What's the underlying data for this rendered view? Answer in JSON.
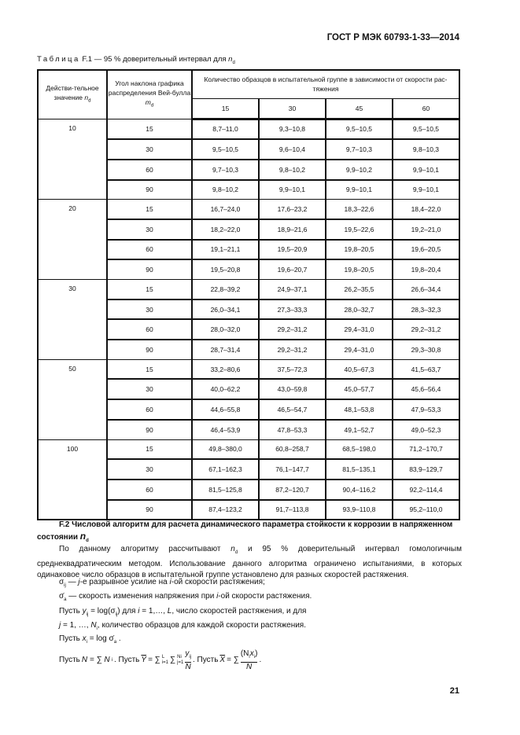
{
  "header": {
    "doc_id": "ГОСТ Р МЭК 60793-1-33—2014"
  },
  "caption": {
    "label": "Таблица",
    "rest": " F.1 — 95 % доверительный интервал для ",
    "var": "n",
    "sub": "d"
  },
  "table": {
    "col1": {
      "text": "Действи-тельное значение ",
      "var": "n",
      "sub": "d"
    },
    "col2": {
      "text": "Угол наклона графика распределения Вей-булла ",
      "var": "m",
      "sub": "d"
    },
    "group": "Количество образцов в испытательной группе в зависимости от скорости рас-тяжения",
    "sample_sizes": [
      "15",
      "30",
      "45",
      "60"
    ],
    "groups": [
      {
        "nd": "10",
        "rows": [
          {
            "m": "15",
            "v": [
              "8,7–11,0",
              "9,3–10,8",
              "9,5–10,5",
              "9,5–10,5"
            ]
          },
          {
            "m": "30",
            "v": [
              "9,5–10,5",
              "9,6–10,4",
              "9,7–10,3",
              "9,8–10,3"
            ]
          },
          {
            "m": "60",
            "v": [
              "9,7–10,3",
              "9,8–10,2",
              "9,9–10,2",
              "9,9–10,1"
            ]
          },
          {
            "m": "90",
            "v": [
              "9,8–10,2",
              "9,9–10,1",
              "9,9–10,1",
              "9,9–10,1"
            ]
          }
        ]
      },
      {
        "nd": "20",
        "rows": [
          {
            "m": "15",
            "v": [
              "16,7–24,0",
              "17,6–23,2",
              "18,3–22,6",
              "18,4–22,0"
            ]
          },
          {
            "m": "30",
            "v": [
              "18,2–22,0",
              "18,9–21,6",
              "19,5–22,6",
              "19,2–21,0"
            ]
          },
          {
            "m": "60",
            "v": [
              "19,1–21,1",
              "19,5–20,9",
              "19,8–20,5",
              "19,6–20,5"
            ]
          },
          {
            "m": "90",
            "v": [
              "19,5–20,8",
              "19,6–20,7",
              "19,8–20,5",
              "19,8–20,4"
            ]
          }
        ]
      },
      {
        "nd": "30",
        "rows": [
          {
            "m": "15",
            "v": [
              "22,8–39,2",
              "24,9–37,1",
              "26,2–35,5",
              "26,6–34,4"
            ]
          },
          {
            "m": "30",
            "v": [
              "26,0–34,1",
              "27,3–33,3",
              "28,0–32,7",
              "28,3–32,3"
            ]
          },
          {
            "m": "60",
            "v": [
              "28,0–32,0",
              "29,2–31,2",
              "29,4–31,0",
              "29,2–31,2"
            ]
          },
          {
            "m": "90",
            "v": [
              "28,7–31,4",
              "29,2–31,2",
              "29,4–31,0",
              "29,3–30,8"
            ]
          }
        ]
      },
      {
        "nd": "50",
        "rows": [
          {
            "m": "15",
            "v": [
              "33,2–80,6",
              "37,5–72,3",
              "40,5–67,3",
              "41,5–63,7"
            ]
          },
          {
            "m": "30",
            "v": [
              "40,0–62,2",
              "43,0–59,8",
              "45,0–57,7",
              "45,6–56,4"
            ]
          },
          {
            "m": "60",
            "v": [
              "44,6–55,8",
              "46,5–54,7",
              "48,1–53,8",
              "47,9–53,3"
            ]
          },
          {
            "m": "90",
            "v": [
              "46,4–53,9",
              "47,8–53,3",
              "49,1–52,7",
              "49,0–52,3"
            ]
          }
        ]
      },
      {
        "nd": "100",
        "rows": [
          {
            "m": "15",
            "v": [
              "49,8–380,0",
              "60,8–258,7",
              "68,5–198,0",
              "71,2–170,7"
            ]
          },
          {
            "m": "30",
            "v": [
              "67,1–162,3",
              "76,1–147,7",
              "81,5–135,1",
              "83,9–129,7"
            ]
          },
          {
            "m": "60",
            "v": [
              "81,5–125,8",
              "87,2–120,7",
              "90,4–116,2",
              "92,2–114,4"
            ]
          },
          {
            "m": "90",
            "v": [
              "87,4–123,2",
              "91,7–113,8",
              "93,9–110,8",
              "95,2–110,0"
            ]
          }
        ]
      }
    ]
  },
  "section": {
    "title": "F.2 Числовой алгоритм для расчета динамического параметра стойкости к коррозии в напряженном состоянии ",
    "var": "n",
    "sub": "d"
  },
  "para": {
    "a": "По данному алгоритму рассчитывают ",
    "var": "n",
    "sub": "d",
    "b": " и 95 % доверительный интервал гомологичным среднеквадратическим методом. Использование данного алгоритма ограничено испытаниями, в которых одинаковое число образцов в испытательной группе установлено для разных скоростей растяжения."
  },
  "defs": {
    "l1": {
      "sym": "σ",
      "sub": "ij",
      "a": " — ",
      "j": "j",
      "b": "-е разрывное усилие на ",
      "i": "i",
      "c": "-ой скорости растяжения;"
    },
    "l2": {
      "sym": "σ̇",
      "sub": "a",
      "a": " — скорость изменения напряжения при ",
      "i": "i",
      "b": "-ой скорости растяжения."
    },
    "l3": {
      "a": "Пусть ",
      "f1": "y",
      "f1sub": "ij",
      "f2": " = log(σ",
      "f2sub": "ij",
      "f3": ")",
      "b": " для ",
      "i": "i",
      "c": " = 1,…, ",
      "L": "L",
      "d": ", число скоростей растяжения, и для"
    },
    "l4": {
      "j": "j",
      "a": " = 1, …, ",
      "N": "N",
      "Nsub": "i",
      "b": ", количество образцов для каждой скорости растяжения."
    },
    "l5": {
      "a": "Пусть ",
      "x": "x",
      "xsub": "i",
      "f": " = log σ̇",
      "fsub": "a",
      "b": " ."
    },
    "l6": {
      "a": "Пусть ",
      "f1": "N = ∑ N",
      "f1sub": "i",
      "b": " . Пусть ",
      "f2": "Y",
      "f3": " = ∑",
      "f3sup": "L",
      "f3sub": "i=1",
      "f4": "∑",
      "f4sup": "Ni",
      "f4sub": "j=1",
      "f5n": "y",
      "f5nsub": "ij",
      "f5d": "N",
      "c": " . Пусть ",
      "f6": "X",
      "f7": " = ∑ ",
      "f8n": "(N",
      "f8nsub": "i",
      "f8n2": "x",
      "f8n2sub": "i",
      "f8n3": ")",
      "f8d": "N",
      "d": " ."
    }
  },
  "page_number": "21"
}
